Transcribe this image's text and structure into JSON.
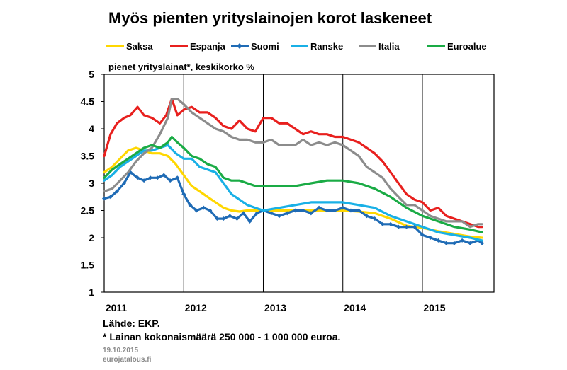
{
  "chart_data": {
    "type": "line",
    "title": "Myös pienten yrityslainojen korot laskeneet",
    "subtitle": "pienet yrityslainat*, keskikorko %",
    "ylim": [
      1,
      5
    ],
    "yticks": [
      "1",
      "1.5",
      "2",
      "2.5",
      "3",
      "3.5",
      "4",
      "4.5",
      "5"
    ],
    "xlim": [
      2011.0,
      2015.9
    ],
    "xticks": [
      {
        "value": 2011.0,
        "label": "2011"
      },
      {
        "value": 2012.0,
        "label": "2012"
      },
      {
        "value": 2013.0,
        "label": "2013"
      },
      {
        "value": 2014.0,
        "label": "2014"
      },
      {
        "value": 2015.0,
        "label": "2015"
      }
    ],
    "legend_position": "top",
    "grid": "vertical year lines",
    "series": [
      {
        "name": "Saksa",
        "color": "#ffd700",
        "marker": false,
        "points": [
          [
            2011.0,
            3.2
          ],
          [
            2011.1,
            3.3
          ],
          [
            2011.2,
            3.45
          ],
          [
            2011.3,
            3.6
          ],
          [
            2011.4,
            3.65
          ],
          [
            2011.5,
            3.6
          ],
          [
            2011.6,
            3.55
          ],
          [
            2011.7,
            3.55
          ],
          [
            2011.8,
            3.5
          ],
          [
            2011.9,
            3.35
          ],
          [
            2012.0,
            3.15
          ],
          [
            2012.1,
            2.95
          ],
          [
            2012.2,
            2.85
          ],
          [
            2012.3,
            2.75
          ],
          [
            2012.4,
            2.65
          ],
          [
            2012.5,
            2.55
          ],
          [
            2012.6,
            2.5
          ],
          [
            2012.7,
            2.48
          ],
          [
            2012.8,
            2.5
          ],
          [
            2012.9,
            2.5
          ],
          [
            2013.0,
            2.5
          ],
          [
            2013.2,
            2.5
          ],
          [
            2013.4,
            2.5
          ],
          [
            2013.6,
            2.5
          ],
          [
            2013.8,
            2.5
          ],
          [
            2014.0,
            2.5
          ],
          [
            2014.2,
            2.48
          ],
          [
            2014.4,
            2.45
          ],
          [
            2014.6,
            2.35
          ],
          [
            2014.8,
            2.22
          ],
          [
            2015.0,
            2.18
          ],
          [
            2015.2,
            2.12
          ],
          [
            2015.4,
            2.07
          ],
          [
            2015.6,
            2.02
          ],
          [
            2015.75,
            2.0
          ]
        ]
      },
      {
        "name": "Espanja",
        "color": "#e8201e",
        "marker": false,
        "points": [
          [
            2011.0,
            3.5
          ],
          [
            2011.08,
            3.9
          ],
          [
            2011.16,
            4.1
          ],
          [
            2011.25,
            4.2
          ],
          [
            2011.33,
            4.25
          ],
          [
            2011.42,
            4.4
          ],
          [
            2011.5,
            4.25
          ],
          [
            2011.6,
            4.2
          ],
          [
            2011.7,
            4.1
          ],
          [
            2011.78,
            4.25
          ],
          [
            2011.85,
            4.55
          ],
          [
            2011.92,
            4.25
          ],
          [
            2012.0,
            4.35
          ],
          [
            2012.1,
            4.4
          ],
          [
            2012.2,
            4.3
          ],
          [
            2012.3,
            4.3
          ],
          [
            2012.4,
            4.2
          ],
          [
            2012.5,
            4.05
          ],
          [
            2012.6,
            4.0
          ],
          [
            2012.7,
            4.15
          ],
          [
            2012.8,
            4.0
          ],
          [
            2012.9,
            3.95
          ],
          [
            2013.0,
            4.2
          ],
          [
            2013.1,
            4.2
          ],
          [
            2013.2,
            4.1
          ],
          [
            2013.3,
            4.1
          ],
          [
            2013.4,
            4.0
          ],
          [
            2013.5,
            3.9
          ],
          [
            2013.6,
            3.95
          ],
          [
            2013.7,
            3.9
          ],
          [
            2013.8,
            3.9
          ],
          [
            2013.9,
            3.85
          ],
          [
            2014.0,
            3.85
          ],
          [
            2014.1,
            3.8
          ],
          [
            2014.2,
            3.75
          ],
          [
            2014.3,
            3.65
          ],
          [
            2014.4,
            3.55
          ],
          [
            2014.5,
            3.4
          ],
          [
            2014.6,
            3.2
          ],
          [
            2014.7,
            3.0
          ],
          [
            2014.8,
            2.8
          ],
          [
            2014.9,
            2.7
          ],
          [
            2015.0,
            2.65
          ],
          [
            2015.1,
            2.5
          ],
          [
            2015.2,
            2.55
          ],
          [
            2015.3,
            2.4
          ],
          [
            2015.4,
            2.35
          ],
          [
            2015.5,
            2.3
          ],
          [
            2015.6,
            2.25
          ],
          [
            2015.7,
            2.2
          ],
          [
            2015.75,
            2.2
          ]
        ]
      },
      {
        "name": "Suomi",
        "color": "#1f6bb5",
        "marker": true,
        "points": [
          [
            2011.0,
            2.72
          ],
          [
            2011.08,
            2.75
          ],
          [
            2011.16,
            2.85
          ],
          [
            2011.25,
            3.0
          ],
          [
            2011.33,
            3.2
          ],
          [
            2011.42,
            3.1
          ],
          [
            2011.5,
            3.05
          ],
          [
            2011.58,
            3.1
          ],
          [
            2011.67,
            3.1
          ],
          [
            2011.75,
            3.15
          ],
          [
            2011.83,
            3.05
          ],
          [
            2011.92,
            3.1
          ],
          [
            2012.0,
            2.8
          ],
          [
            2012.08,
            2.6
          ],
          [
            2012.16,
            2.5
          ],
          [
            2012.25,
            2.55
          ],
          [
            2012.33,
            2.5
          ],
          [
            2012.42,
            2.35
          ],
          [
            2012.5,
            2.35
          ],
          [
            2012.58,
            2.4
          ],
          [
            2012.67,
            2.35
          ],
          [
            2012.75,
            2.45
          ],
          [
            2012.83,
            2.3
          ],
          [
            2012.92,
            2.45
          ],
          [
            2013.0,
            2.5
          ],
          [
            2013.1,
            2.45
          ],
          [
            2013.2,
            2.4
          ],
          [
            2013.3,
            2.45
          ],
          [
            2013.4,
            2.5
          ],
          [
            2013.5,
            2.5
          ],
          [
            2013.6,
            2.45
          ],
          [
            2013.7,
            2.55
          ],
          [
            2013.8,
            2.5
          ],
          [
            2013.9,
            2.5
          ],
          [
            2014.0,
            2.55
          ],
          [
            2014.1,
            2.5
          ],
          [
            2014.2,
            2.5
          ],
          [
            2014.3,
            2.4
          ],
          [
            2014.4,
            2.35
          ],
          [
            2014.5,
            2.25
          ],
          [
            2014.6,
            2.25
          ],
          [
            2014.7,
            2.2
          ],
          [
            2014.8,
            2.2
          ],
          [
            2014.9,
            2.2
          ],
          [
            2015.0,
            2.05
          ],
          [
            2015.1,
            2.0
          ],
          [
            2015.2,
            1.95
          ],
          [
            2015.3,
            1.9
          ],
          [
            2015.4,
            1.9
          ],
          [
            2015.5,
            1.95
          ],
          [
            2015.6,
            1.9
          ],
          [
            2015.7,
            1.95
          ],
          [
            2015.75,
            1.9
          ]
        ]
      },
      {
        "name": "Ranske",
        "color": "#19b0e6",
        "marker": false,
        "points": [
          [
            2011.0,
            3.05
          ],
          [
            2011.1,
            3.15
          ],
          [
            2011.2,
            3.3
          ],
          [
            2011.3,
            3.4
          ],
          [
            2011.4,
            3.5
          ],
          [
            2011.5,
            3.6
          ],
          [
            2011.6,
            3.6
          ],
          [
            2011.7,
            3.65
          ],
          [
            2011.8,
            3.7
          ],
          [
            2011.9,
            3.55
          ],
          [
            2012.0,
            3.45
          ],
          [
            2012.1,
            3.45
          ],
          [
            2012.2,
            3.3
          ],
          [
            2012.3,
            3.25
          ],
          [
            2012.4,
            3.2
          ],
          [
            2012.5,
            3.0
          ],
          [
            2012.6,
            2.8
          ],
          [
            2012.7,
            2.7
          ],
          [
            2012.8,
            2.6
          ],
          [
            2012.9,
            2.55
          ],
          [
            2013.0,
            2.5
          ],
          [
            2013.2,
            2.55
          ],
          [
            2013.4,
            2.6
          ],
          [
            2013.6,
            2.65
          ],
          [
            2013.8,
            2.65
          ],
          [
            2014.0,
            2.65
          ],
          [
            2014.2,
            2.6
          ],
          [
            2014.4,
            2.55
          ],
          [
            2014.6,
            2.4
          ],
          [
            2014.8,
            2.3
          ],
          [
            2015.0,
            2.2
          ],
          [
            2015.2,
            2.1
          ],
          [
            2015.4,
            2.05
          ],
          [
            2015.6,
            2.0
          ],
          [
            2015.75,
            1.95
          ]
        ]
      },
      {
        "name": "Italia",
        "color": "#8c8c8c",
        "marker": false,
        "points": [
          [
            2011.0,
            2.85
          ],
          [
            2011.1,
            2.9
          ],
          [
            2011.2,
            3.05
          ],
          [
            2011.3,
            3.2
          ],
          [
            2011.4,
            3.4
          ],
          [
            2011.5,
            3.55
          ],
          [
            2011.6,
            3.65
          ],
          [
            2011.7,
            3.9
          ],
          [
            2011.8,
            4.2
          ],
          [
            2011.85,
            4.55
          ],
          [
            2011.92,
            4.55
          ],
          [
            2012.0,
            4.45
          ],
          [
            2012.1,
            4.3
          ],
          [
            2012.2,
            4.2
          ],
          [
            2012.3,
            4.1
          ],
          [
            2012.4,
            4.0
          ],
          [
            2012.5,
            3.95
          ],
          [
            2012.6,
            3.85
          ],
          [
            2012.7,
            3.8
          ],
          [
            2012.8,
            3.8
          ],
          [
            2012.9,
            3.75
          ],
          [
            2013.0,
            3.75
          ],
          [
            2013.1,
            3.8
          ],
          [
            2013.2,
            3.7
          ],
          [
            2013.3,
            3.7
          ],
          [
            2013.4,
            3.7
          ],
          [
            2013.5,
            3.8
          ],
          [
            2013.6,
            3.7
          ],
          [
            2013.7,
            3.75
          ],
          [
            2013.8,
            3.7
          ],
          [
            2013.9,
            3.75
          ],
          [
            2014.0,
            3.7
          ],
          [
            2014.1,
            3.6
          ],
          [
            2014.2,
            3.5
          ],
          [
            2014.3,
            3.3
          ],
          [
            2014.4,
            3.2
          ],
          [
            2014.5,
            3.1
          ],
          [
            2014.6,
            2.9
          ],
          [
            2014.7,
            2.75
          ],
          [
            2014.8,
            2.6
          ],
          [
            2014.9,
            2.6
          ],
          [
            2015.0,
            2.5
          ],
          [
            2015.1,
            2.4
          ],
          [
            2015.2,
            2.35
          ],
          [
            2015.3,
            2.3
          ],
          [
            2015.4,
            2.3
          ],
          [
            2015.5,
            2.3
          ],
          [
            2015.6,
            2.2
          ],
          [
            2015.7,
            2.25
          ],
          [
            2015.75,
            2.25
          ]
        ]
      },
      {
        "name": "Euroalue",
        "color": "#1aab45",
        "marker": false,
        "points": [
          [
            2011.0,
            3.1
          ],
          [
            2011.1,
            3.25
          ],
          [
            2011.2,
            3.35
          ],
          [
            2011.3,
            3.45
          ],
          [
            2011.4,
            3.55
          ],
          [
            2011.5,
            3.65
          ],
          [
            2011.6,
            3.7
          ],
          [
            2011.7,
            3.65
          ],
          [
            2011.8,
            3.75
          ],
          [
            2011.85,
            3.85
          ],
          [
            2011.92,
            3.75
          ],
          [
            2012.0,
            3.65
          ],
          [
            2012.1,
            3.5
          ],
          [
            2012.2,
            3.45
          ],
          [
            2012.3,
            3.35
          ],
          [
            2012.4,
            3.3
          ],
          [
            2012.5,
            3.1
          ],
          [
            2012.6,
            3.05
          ],
          [
            2012.7,
            3.05
          ],
          [
            2012.8,
            3.0
          ],
          [
            2012.9,
            2.95
          ],
          [
            2013.0,
            2.95
          ],
          [
            2013.2,
            2.95
          ],
          [
            2013.4,
            2.95
          ],
          [
            2013.6,
            3.0
          ],
          [
            2013.8,
            3.05
          ],
          [
            2014.0,
            3.05
          ],
          [
            2014.2,
            3.0
          ],
          [
            2014.4,
            2.9
          ],
          [
            2014.6,
            2.75
          ],
          [
            2014.8,
            2.55
          ],
          [
            2015.0,
            2.4
          ],
          [
            2015.2,
            2.3
          ],
          [
            2015.4,
            2.2
          ],
          [
            2015.6,
            2.15
          ],
          [
            2015.75,
            2.1
          ]
        ]
      }
    ]
  },
  "footer": {
    "source": "Lähde: EKP.",
    "footnote": "* Lainan kokonaismäärä 250 000 - 1 000 000 euroa.",
    "date": "19.10.2015",
    "site": "eurojatalous.fi"
  }
}
